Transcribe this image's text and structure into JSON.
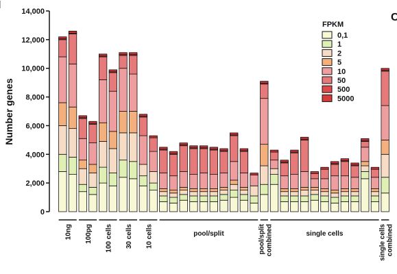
{
  "chart_data": {
    "type": "bar",
    "stacked": true,
    "ylabel": "Number genes",
    "ylim": [
      0,
      14000
    ],
    "yticks": [
      "0",
      "2,000",
      "4,000",
      "6,000",
      "8,000",
      "10,000",
      "12,000",
      "14,000"
    ],
    "legend_title": "FPKM",
    "legend_position": "top-right",
    "series": [
      {
        "name": "0,1",
        "color": "#f8f8d4",
        "values": [
          2800,
          2600,
          1400,
          1200,
          2000,
          1800,
          2400,
          2300,
          1800,
          1500,
          700,
          600,
          800,
          700,
          700,
          700,
          800,
          1000,
          800,
          600,
          1200,
          1900,
          700,
          700,
          700,
          800,
          700,
          600,
          700,
          700,
          2300,
          700,
          1300
        ]
      },
      {
        "name": "1",
        "color": "#e0f0b4",
        "values": [
          1200,
          1200,
          500,
          500,
          1100,
          900,
          1200,
          1200,
          700,
          500,
          400,
          400,
          400,
          400,
          400,
          400,
          400,
          500,
          400,
          500,
          700,
          700,
          400,
          400,
          400,
          400,
          400,
          400,
          400,
          400,
          500,
          400,
          1100
        ]
      },
      {
        "name": "2",
        "color": "#f6dcc4",
        "values": [
          2000,
          2000,
          1100,
          1000,
          1800,
          1700,
          1900,
          2000,
          800,
          800,
          300,
          300,
          300,
          300,
          300,
          300,
          300,
          400,
          300,
          700,
          1300,
          400,
          300,
          300,
          400,
          300,
          300,
          300,
          300,
          300,
          400,
          300,
          1600
        ]
      },
      {
        "name": "5",
        "color": "#f4b07c",
        "values": [
          1600,
          1500,
          600,
          600,
          1300,
          1200,
          1500,
          1500,
          0,
          0,
          200,
          200,
          200,
          200,
          200,
          200,
          200,
          300,
          200,
          0,
          1500,
          0,
          200,
          200,
          200,
          200,
          200,
          200,
          200,
          200,
          300,
          200,
          1000
        ]
      },
      {
        "name": "10",
        "color": "#ee9e9e",
        "values": [
          3200,
          3000,
          1500,
          1500,
          3000,
          2800,
          3000,
          2600,
          2000,
          1400,
          1100,
          1000,
          1100,
          1000,
          1100,
          1000,
          1000,
          1300,
          1000,
          800,
          3200,
          600,
          900,
          1000,
          1100,
          600,
          700,
          1000,
          900,
          800,
          1000,
          800,
          2400
        ]
      },
      {
        "name": "50",
        "color": "#e67a7a",
        "values": [
          1200,
          2100,
          1400,
          1300,
          1600,
          1300,
          900,
          1300,
          1300,
          1000,
          1600,
          1500,
          1800,
          1800,
          1700,
          1700,
          1500,
          1800,
          1500,
          0,
          1000,
          600,
          900,
          1500,
          2200,
          400,
          700,
          800,
          1000,
          800,
          400,
          600,
          2400
        ]
      },
      {
        "name": "500",
        "color": "#dc4a4a",
        "values": [
          100,
          100,
          100,
          100,
          100,
          100,
          100,
          100,
          100,
          0,
          100,
          100,
          100,
          100,
          100,
          100,
          100,
          100,
          100,
          0,
          100,
          0,
          100,
          100,
          100,
          0,
          0,
          100,
          100,
          100,
          100,
          0,
          100
        ]
      },
      {
        "name": "5000",
        "color": "#d43c3c",
        "values": [
          0,
          0,
          0,
          0,
          0,
          0,
          0,
          0,
          0,
          0,
          0,
          0,
          0,
          0,
          0,
          0,
          0,
          0,
          0,
          0,
          0,
          0,
          0,
          0,
          0,
          0,
          0,
          0,
          0,
          0,
          0,
          0,
          0
        ]
      }
    ],
    "groups": [
      {
        "label": "10ng",
        "start": 0,
        "end": 1
      },
      {
        "label": "100pg",
        "start": 2,
        "end": 3
      },
      {
        "label": "100 cells",
        "start": 4,
        "end": 5
      },
      {
        "label": "30 cells",
        "start": 6,
        "end": 7
      },
      {
        "label": "10 cells",
        "start": 8,
        "end": 9
      },
      {
        "label": "pool/split",
        "start": 10,
        "end": 19
      },
      {
        "label": "pool/split combined",
        "start": 20,
        "end": 20
      },
      {
        "label": "single cells",
        "start": 21,
        "end": 31
      },
      {
        "label": "single cells combined",
        "start": 32,
        "end": 32
      }
    ],
    "panel_labels": [
      "I",
      "C"
    ]
  }
}
